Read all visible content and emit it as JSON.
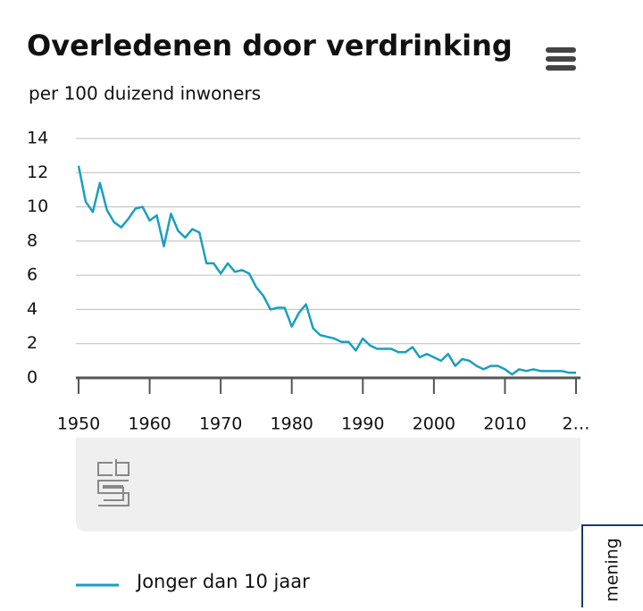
{
  "chart_data": {
    "type": "line",
    "title": "Overledenen door verdrinking",
    "subtitle": "per 100 duizend inwoners",
    "x": [
      1950,
      1951,
      1952,
      1953,
      1954,
      1955,
      1956,
      1957,
      1958,
      1959,
      1960,
      1961,
      1962,
      1963,
      1964,
      1965,
      1966,
      1967,
      1968,
      1969,
      1970,
      1971,
      1972,
      1973,
      1974,
      1975,
      1976,
      1977,
      1978,
      1979,
      1980,
      1981,
      1982,
      1983,
      1984,
      1985,
      1986,
      1987,
      1988,
      1989,
      1990,
      1991,
      1992,
      1993,
      1994,
      1995,
      1996,
      1997,
      1998,
      1999,
      2000,
      2001,
      2002,
      2003,
      2004,
      2005,
      2006,
      2007,
      2008,
      2009,
      2010,
      2011,
      2012,
      2013,
      2014,
      2015,
      2016,
      2017,
      2018,
      2019,
      2020
    ],
    "series": [
      {
        "name": "Jonger dan 10 jaar",
        "color": "#1a9fbf",
        "values": [
          12.4,
          10.3,
          9.7,
          11.4,
          9.8,
          9.1,
          8.8,
          9.3,
          9.9,
          10.0,
          9.2,
          9.5,
          7.7,
          9.6,
          8.6,
          8.2,
          8.7,
          8.5,
          6.7,
          6.7,
          6.1,
          6.7,
          6.2,
          6.3,
          6.1,
          5.3,
          4.8,
          4.0,
          4.1,
          4.1,
          3.0,
          3.8,
          4.3,
          2.9,
          2.5,
          2.4,
          2.3,
          2.1,
          2.1,
          1.6,
          2.3,
          1.9,
          1.7,
          1.7,
          1.7,
          1.5,
          1.5,
          1.8,
          1.2,
          1.4,
          1.2,
          1.0,
          1.4,
          0.7,
          1.1,
          1.0,
          0.7,
          0.5,
          0.7,
          0.7,
          0.5,
          0.2,
          0.5,
          0.4,
          0.5,
          0.4,
          0.4,
          0.4,
          0.4,
          0.3,
          0.3
        ]
      }
    ],
    "xlim": [
      1950,
      2020
    ],
    "ylim": [
      0,
      14
    ],
    "xticks": [
      1950,
      1960,
      1970,
      1980,
      1990,
      2000,
      2010,
      {
        "value": 2020,
        "label": "2…"
      }
    ],
    "yticks": [
      0,
      2,
      4,
      6,
      8,
      10,
      12,
      14
    ],
    "grid": true
  },
  "tab_label": "mening"
}
